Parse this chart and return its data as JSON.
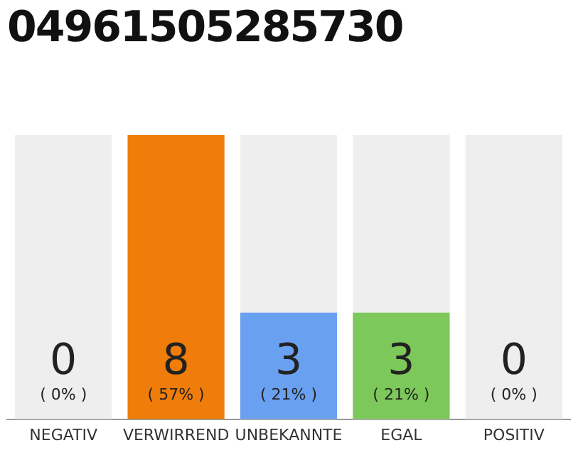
{
  "chart_data": {
    "type": "bar",
    "title": "04961505285730",
    "categories": [
      "NEGATIV",
      "VERWIRREND",
      "UNBEKANNTE",
      "EGAL",
      "POSITIV"
    ],
    "values": [
      0,
      8,
      3,
      3,
      0
    ],
    "colors": [
      "#c8c8c8",
      "#f07d0a",
      "#6aa0f0",
      "#7dc85a",
      "#c8c8c8"
    ],
    "value_labels": [
      "0",
      "8",
      "3",
      "3",
      "0"
    ],
    "annotations": [
      {
        "text": "( 0% )",
        "x": "NEGATIV",
        "y": 0
      },
      {
        "text": "( 57% )",
        "x": "VERWIRREND",
        "y": 0
      },
      {
        "text": "( 21% )",
        "x": "UNBEKANNTE",
        "y": 0
      },
      {
        "text": "( 21% )",
        "x": "EGAL",
        "y": 0
      },
      {
        "text": "( 0% )",
        "x": "POSITIV",
        "y": 0
      }
    ],
    "bands": [
      {
        "axis": "x",
        "from": "NEGATIV",
        "to": "NEGATIV",
        "color": "#eeeeee"
      },
      {
        "axis": "x",
        "from": "UNBEKANNTE",
        "to": "UNBEKANNTE",
        "color": "#eeeeee"
      },
      {
        "axis": "x",
        "from": "EGAL",
        "to": "EGAL",
        "color": "#eeeeee"
      },
      {
        "axis": "x",
        "from": "POSITIV",
        "to": "POSITIV",
        "color": "#eeeeee"
      }
    ],
    "grid": false,
    "legend": false
  }
}
